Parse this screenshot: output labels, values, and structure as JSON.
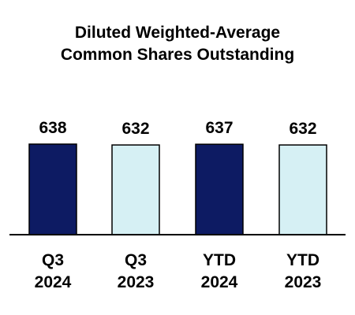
{
  "chart_data": {
    "type": "bar",
    "title": [
      "Diluted Weighted-Average",
      "Common Shares Outstanding"
    ],
    "categories": [
      [
        "Q3",
        "2024"
      ],
      [
        "Q3",
        "2023"
      ],
      [
        "YTD",
        "2024"
      ],
      [
        "YTD",
        "2023"
      ]
    ],
    "values": [
      638,
      632,
      637,
      632
    ],
    "data_labels": [
      "638",
      "632",
      "637",
      "632"
    ],
    "bar_colors": [
      "#0d1b63",
      "#d6f0f4",
      "#0d1b63",
      "#d6f0f4"
    ],
    "bar_outline": "#000000",
    "ylim": [
      0,
      638
    ],
    "grid": false,
    "legend": "none"
  }
}
